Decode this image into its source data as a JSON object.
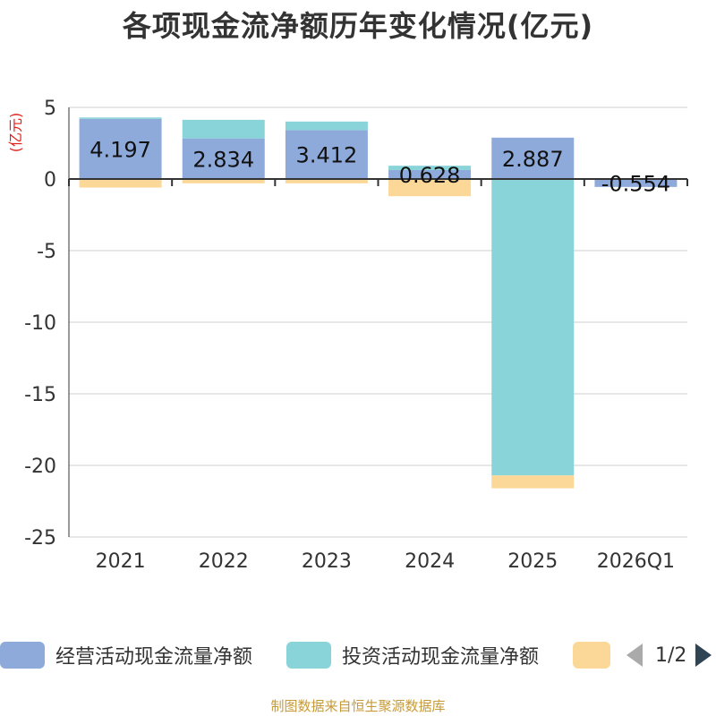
{
  "chart_data": {
    "type": "bar",
    "stacked": true,
    "title": "各项现金流净额历年变化情况(亿元)",
    "ylabel": "(亿元)",
    "xlabel": "",
    "ylim": [
      -25,
      5
    ],
    "yticks": [
      5,
      0,
      -5,
      -10,
      -15,
      -20,
      -25
    ],
    "categories": [
      "2021",
      "2022",
      "2023",
      "2024",
      "2025",
      "2026Q1"
    ],
    "series": [
      {
        "name": "经营活动现金流量净额",
        "color": "#8eaadb",
        "values": [
          4.197,
          2.834,
          3.412,
          0.628,
          2.887,
          -0.554
        ],
        "labels": [
          "4.197",
          "2.834",
          "3.412",
          "0.628",
          "2.887",
          "-0.554"
        ]
      },
      {
        "name": "投资活动现金流量净额",
        "color": "#88d4d8",
        "values": [
          0.1,
          1.3,
          0.6,
          0.3,
          -20.7,
          0.0
        ]
      },
      {
        "name": "",
        "color": "#fcd898",
        "values": [
          -0.6,
          -0.3,
          -0.3,
          -1.2,
          -0.9,
          0.0
        ]
      }
    ],
    "legend": {
      "position": "bottom",
      "page": "1/2"
    }
  },
  "source": "制图数据来自恒生聚源数据库"
}
